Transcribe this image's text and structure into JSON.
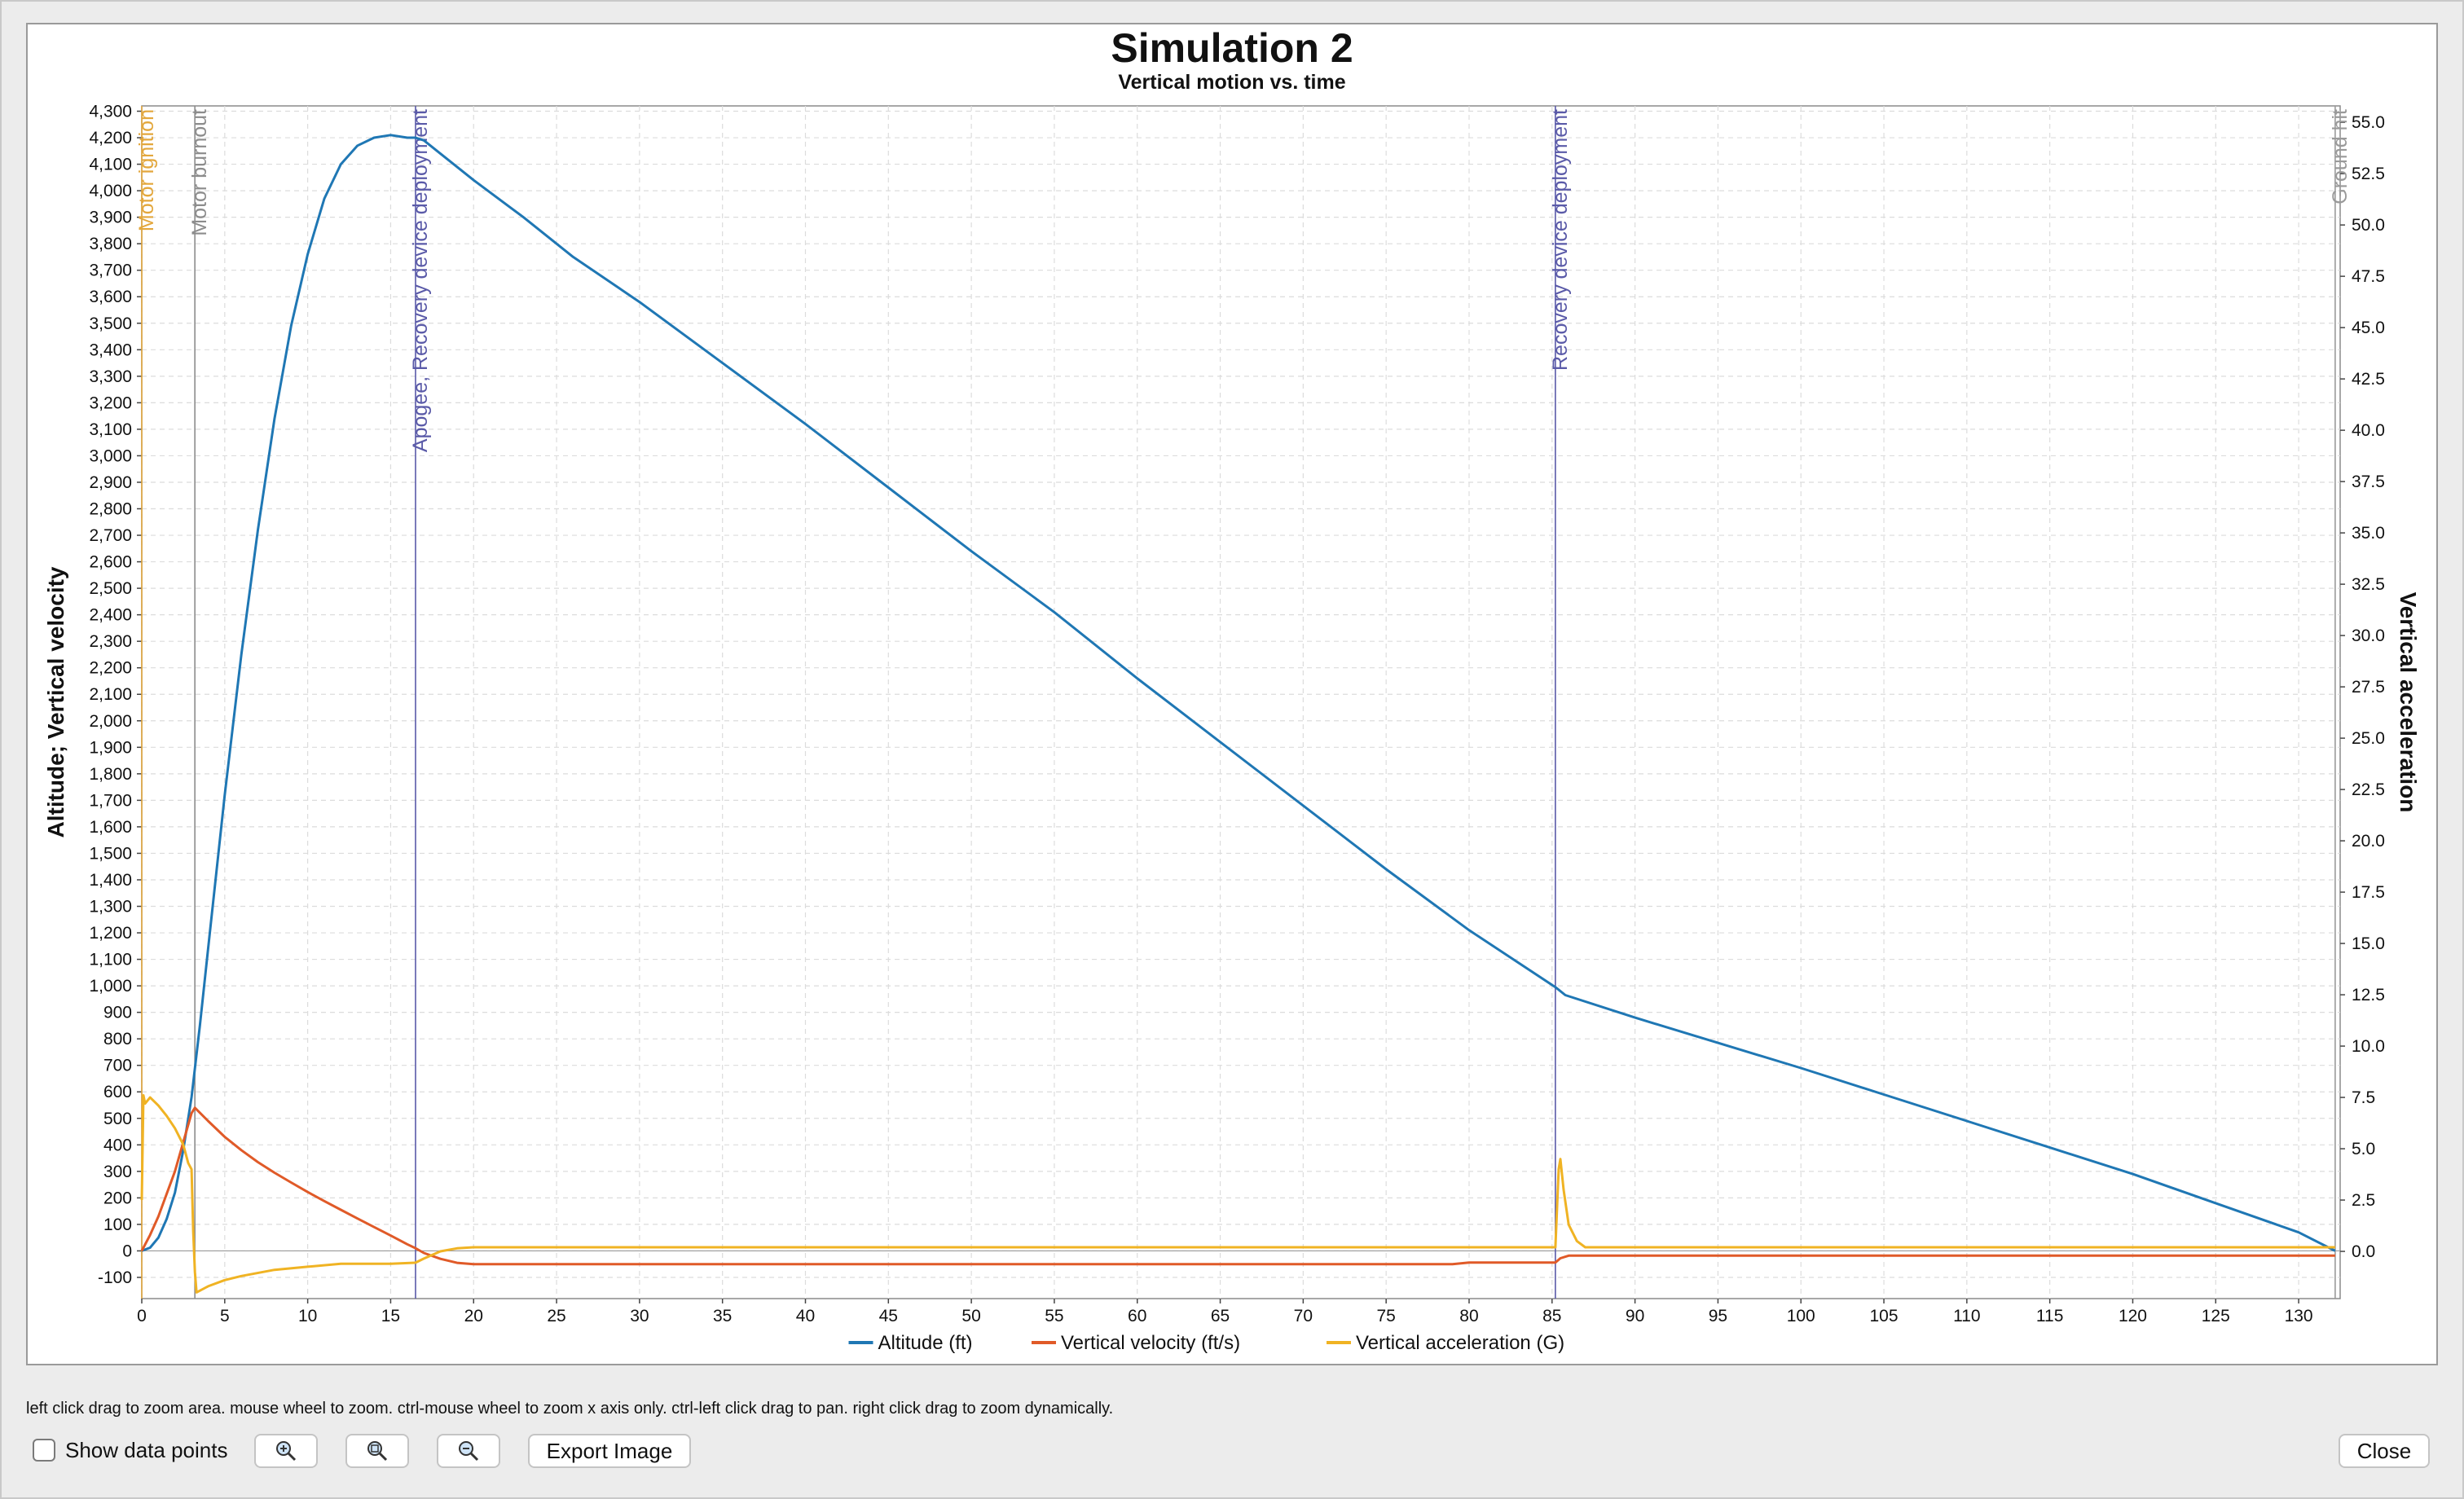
{
  "chart_data": {
    "type": "line",
    "title": "Simulation 2",
    "subtitle": "Vertical motion vs. time",
    "ylabel_left": "Altitude; Vertical velocity",
    "ylabel_right": "Vertical acceleration",
    "xlim": [
      0,
      132.5
    ],
    "ylim_left": [
      -180,
      4320
    ],
    "ylim_right": [
      -2.3,
      55.8
    ],
    "x_ticks": [
      "0",
      "5",
      "10",
      "15",
      "20",
      "25",
      "30",
      "35",
      "40",
      "45",
      "50",
      "55",
      "60",
      "65",
      "70",
      "75",
      "80",
      "85",
      "90",
      "95",
      "100",
      "105",
      "110",
      "115",
      "120",
      "125",
      "130"
    ],
    "y_ticks_left": [
      "-100",
      "0",
      "100",
      "200",
      "300",
      "400",
      "500",
      "600",
      "700",
      "800",
      "900",
      "1,000",
      "1,100",
      "1,200",
      "1,300",
      "1,400",
      "1,500",
      "1,600",
      "1,700",
      "1,800",
      "1,900",
      "2,000",
      "2,100",
      "2,200",
      "2,300",
      "2,400",
      "2,500",
      "2,600",
      "2,700",
      "2,800",
      "2,900",
      "3,000",
      "3,100",
      "3,200",
      "3,300",
      "3,400",
      "3,500",
      "3,600",
      "3,700",
      "3,800",
      "3,900",
      "4,000",
      "4,100",
      "4,200",
      "4,300"
    ],
    "y_ticks_right": [
      "0.0",
      "2.5",
      "5.0",
      "7.5",
      "10.0",
      "12.5",
      "15.0",
      "17.5",
      "20.0",
      "22.5",
      "25.0",
      "27.5",
      "30.0",
      "32.5",
      "35.0",
      "37.5",
      "40.0",
      "42.5",
      "45.0",
      "47.5",
      "50.0",
      "52.5",
      "55.0"
    ],
    "grid": true,
    "legend_position": "bottom",
    "events": [
      {
        "label": "Motor ignition",
        "x": 0.0,
        "color": "#e3a73c"
      },
      {
        "label": "Motor burnout",
        "x": 3.2,
        "color": "#8c8c8c"
      },
      {
        "label": "Apogee, Recovery device deployment",
        "x": 16.5,
        "color": "#5a5aa8"
      },
      {
        "label": "Recovery device deployment",
        "x": 85.2,
        "color": "#5a5aa8"
      },
      {
        "label": "Ground hit",
        "x": 132.2,
        "color": "#9a9a9a"
      }
    ],
    "series": [
      {
        "name": "Altitude (ft)",
        "axis": "left",
        "color": "#1f77b4",
        "x": [
          0,
          0.5,
          1,
          1.5,
          2,
          2.5,
          3,
          3.5,
          4,
          5,
          6,
          7,
          8,
          9,
          10,
          11,
          12,
          13,
          14,
          15,
          16,
          16.5,
          17,
          18,
          20,
          23,
          26,
          30,
          35,
          40,
          45,
          50,
          55,
          60,
          65,
          70,
          75,
          80,
          85.2,
          85.8,
          90,
          95,
          100,
          105,
          110,
          115,
          120,
          125,
          130,
          132.2
        ],
        "y": [
          0,
          12,
          50,
          120,
          220,
          380,
          580,
          850,
          1140,
          1720,
          2250,
          2720,
          3140,
          3490,
          3760,
          3970,
          4100,
          4170,
          4200,
          4210,
          4200,
          4200,
          4190,
          4140,
          4040,
          3900,
          3750,
          3580,
          3350,
          3120,
          2880,
          2640,
          2410,
          2160,
          1920,
          1680,
          1440,
          1210,
          995,
          965,
          880,
          785,
          690,
          590,
          490,
          390,
          290,
          180,
          70,
          0
        ]
      },
      {
        "name": "Vertical velocity (ft/s)",
        "axis": "left",
        "color": "#e05a28",
        "x": [
          0,
          0.5,
          1,
          2,
          3,
          3.2,
          4,
          5,
          6,
          7,
          8,
          9,
          10,
          11,
          12,
          13,
          14,
          15,
          16,
          16.5,
          17,
          18,
          19,
          20,
          40,
          60,
          79,
          80,
          85.2,
          85.5,
          86,
          100,
          132.2
        ],
        "y": [
          0,
          60,
          130,
          300,
          520,
          540,
          490,
          430,
          380,
          335,
          295,
          258,
          222,
          188,
          155,
          122,
          90,
          58,
          25,
          10,
          -8,
          -30,
          -45,
          -50,
          -50,
          -50,
          -50,
          -44,
          -44,
          -28,
          -18,
          -18,
          -18
        ]
      },
      {
        "name": "Vertical acceleration (G)",
        "axis": "right",
        "color": "#f0b323",
        "x": [
          0,
          0.1,
          0.2,
          0.5,
          1,
          1.5,
          2,
          2.5,
          2.8,
          3.0,
          3.1,
          3.2,
          3.3,
          4,
          5,
          6,
          8,
          10,
          12,
          15,
          16.5,
          17,
          18,
          19,
          20,
          40,
          60,
          85.2,
          85.4,
          85.5,
          85.7,
          86,
          86.5,
          87,
          90,
          132.2
        ],
        "y": [
          2.5,
          7.6,
          7.2,
          7.5,
          7.1,
          6.6,
          6.0,
          5.2,
          4.3,
          4.0,
          1.0,
          -1.0,
          -2.0,
          -1.7,
          -1.4,
          -1.2,
          -0.9,
          -0.75,
          -0.6,
          -0.6,
          -0.55,
          -0.35,
          0.0,
          0.15,
          0.2,
          0.2,
          0.2,
          0.2,
          4.0,
          4.5,
          3.0,
          1.3,
          0.5,
          0.2,
          0.2,
          0.2
        ]
      }
    ]
  },
  "ui": {
    "hint_text": "left click drag to zoom area. mouse wheel to zoom. ctrl-mouse wheel to zoom x axis only. ctrl-left click drag to pan.  right click drag to zoom dynamically.",
    "show_data_points_label": "Show data points",
    "show_data_points_checked": false,
    "zoom_in_icon": "zoom-in-icon",
    "zoom_fit_icon": "zoom-fit-icon",
    "zoom_out_icon": "zoom-out-icon",
    "export_label": "Export Image",
    "close_label": "Close"
  }
}
